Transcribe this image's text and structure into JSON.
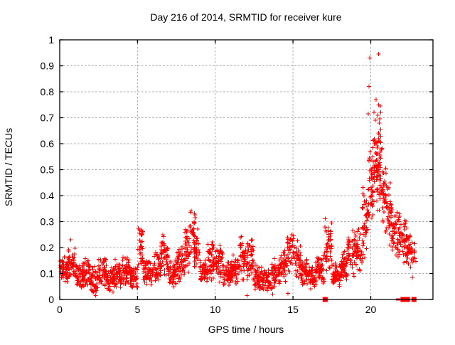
{
  "chart_data": {
    "type": "scatter",
    "title": "Day 216 of 2014, SRMTID for receiver kure",
    "xlabel": "GPS time / hours",
    "ylabel": "SRMTID / TECUs",
    "xlim": [
      0,
      24
    ],
    "ylim": [
      0,
      1
    ],
    "xticks": [
      0,
      5,
      10,
      15,
      20
    ],
    "xtick_labels": [
      "0",
      "5",
      "10",
      "15",
      "20"
    ],
    "yticks": [
      0,
      0.1,
      0.2,
      0.3,
      0.4,
      0.5,
      0.6,
      0.7,
      0.8,
      0.9,
      1
    ],
    "ytick_labels": [
      "0",
      "0.1",
      "0.2",
      "0.3",
      "0.4",
      "0.5",
      "0.6",
      "0.7",
      "0.8",
      "0.9",
      "1"
    ],
    "grid": true,
    "legend": "none",
    "marker": {
      "shape": "plus",
      "color": "#ff0000",
      "size": 7
    },
    "colors": {
      "marker": "#ff0000",
      "grid": "#a8a8a8",
      "border": "#000000",
      "background": "#ffffff",
      "text": "#000000"
    },
    "description": "Dense red plus-marker scatter; baseline 0.05-0.2 TECUs from 0-19h with small spikes near 5.2h (0.31), 8.5h (0.38), 14.8h (0.29), 17.3h (0.33); large disturbance 19.5-22.8h peaking 0.93-0.94 near 20-20.5h; square flags at y=0 near 17.1h and 21.7-22.8h",
    "bands": [
      [
        0.0,
        0.5,
        0.06,
        0.17,
        50
      ],
      [
        0.5,
        1.0,
        0.05,
        0.21,
        50
      ],
      [
        1.0,
        1.5,
        0.04,
        0.15,
        50
      ],
      [
        1.5,
        2.0,
        0.04,
        0.18,
        50
      ],
      [
        2.0,
        2.5,
        0.02,
        0.13,
        50
      ],
      [
        2.5,
        3.0,
        0.04,
        0.17,
        50
      ],
      [
        3.0,
        3.5,
        0.02,
        0.14,
        50
      ],
      [
        3.5,
        4.0,
        0.03,
        0.16,
        50
      ],
      [
        4.0,
        4.5,
        0.04,
        0.17,
        50
      ],
      [
        4.5,
        5.0,
        0.04,
        0.14,
        50
      ],
      [
        5.0,
        5.35,
        0.1,
        0.31,
        30
      ],
      [
        5.35,
        6.0,
        0.05,
        0.16,
        60
      ],
      [
        6.0,
        6.5,
        0.06,
        0.2,
        50
      ],
      [
        6.5,
        7.0,
        0.07,
        0.26,
        50
      ],
      [
        7.0,
        7.5,
        0.04,
        0.16,
        50
      ],
      [
        7.5,
        8.0,
        0.06,
        0.22,
        50
      ],
      [
        8.0,
        8.35,
        0.08,
        0.28,
        35
      ],
      [
        8.35,
        8.7,
        0.14,
        0.38,
        30
      ],
      [
        8.6,
        9.0,
        0.1,
        0.29,
        35
      ],
      [
        9.0,
        9.5,
        0.05,
        0.17,
        45
      ],
      [
        9.5,
        10.0,
        0.06,
        0.23,
        50
      ],
      [
        10.0,
        10.5,
        0.06,
        0.22,
        50
      ],
      [
        10.5,
        11.0,
        0.04,
        0.16,
        50
      ],
      [
        11.0,
        11.5,
        0.05,
        0.18,
        50
      ],
      [
        11.5,
        12.0,
        0.06,
        0.27,
        50
      ],
      [
        12.0,
        12.5,
        0.05,
        0.26,
        50
      ],
      [
        12.5,
        13.0,
        0.03,
        0.14,
        50
      ],
      [
        13.0,
        13.6,
        0.02,
        0.12,
        55
      ],
      [
        13.6,
        14.2,
        0.04,
        0.16,
        55
      ],
      [
        14.2,
        14.65,
        0.06,
        0.2,
        40
      ],
      [
        14.65,
        15.05,
        0.1,
        0.29,
        35
      ],
      [
        15.05,
        15.5,
        0.06,
        0.24,
        40
      ],
      [
        15.5,
        16.0,
        0.04,
        0.16,
        50
      ],
      [
        16.0,
        16.5,
        0.03,
        0.15,
        50
      ],
      [
        16.5,
        17.0,
        0.05,
        0.18,
        50
      ],
      [
        17.0,
        17.5,
        0.07,
        0.33,
        50
      ],
      [
        17.5,
        18.0,
        0.04,
        0.15,
        50
      ],
      [
        18.0,
        18.5,
        0.05,
        0.2,
        50
      ],
      [
        18.5,
        19.0,
        0.07,
        0.3,
        50
      ],
      [
        19.0,
        19.45,
        0.08,
        0.28,
        40
      ],
      [
        19.45,
        19.85,
        0.12,
        0.45,
        45
      ],
      [
        19.85,
        20.15,
        0.22,
        0.62,
        45
      ],
      [
        20.15,
        20.45,
        0.3,
        0.68,
        45
      ],
      [
        20.45,
        20.75,
        0.32,
        0.72,
        45
      ],
      [
        20.75,
        21.05,
        0.25,
        0.55,
        40
      ],
      [
        21.05,
        21.35,
        0.2,
        0.47,
        40
      ],
      [
        21.35,
        21.85,
        0.16,
        0.38,
        50
      ],
      [
        21.85,
        22.35,
        0.12,
        0.33,
        50
      ],
      [
        22.35,
        22.7,
        0.1,
        0.28,
        30
      ],
      [
        22.7,
        22.9,
        0.13,
        0.24,
        10
      ]
    ],
    "outlier_points": [
      [
        19.93,
        0.93
      ],
      [
        20.51,
        0.945
      ],
      [
        19.89,
        0.82
      ],
      [
        20.35,
        0.77
      ],
      [
        20.5,
        0.75
      ],
      [
        20.62,
        0.745
      ],
      [
        20.2,
        0.72
      ],
      [
        19.83,
        0.715
      ],
      [
        20.45,
        0.71
      ],
      [
        20.65,
        0.72
      ],
      [
        20.3,
        0.69
      ],
      [
        20.55,
        0.68
      ],
      [
        0.7,
        0.23
      ],
      [
        14.67,
        0.023
      ],
      [
        12.05,
        0.015
      ],
      [
        22.67,
        0.085
      ],
      [
        13.7,
        0.02
      ],
      [
        2.3,
        0.015
      ]
    ],
    "zero_flag_squares": [
      [
        17.07,
        7
      ],
      [
        21.69,
        3
      ],
      [
        21.75,
        3
      ],
      [
        21.83,
        3
      ],
      [
        22.07,
        7
      ],
      [
        22.36,
        7
      ],
      [
        22.78,
        7
      ]
    ]
  }
}
